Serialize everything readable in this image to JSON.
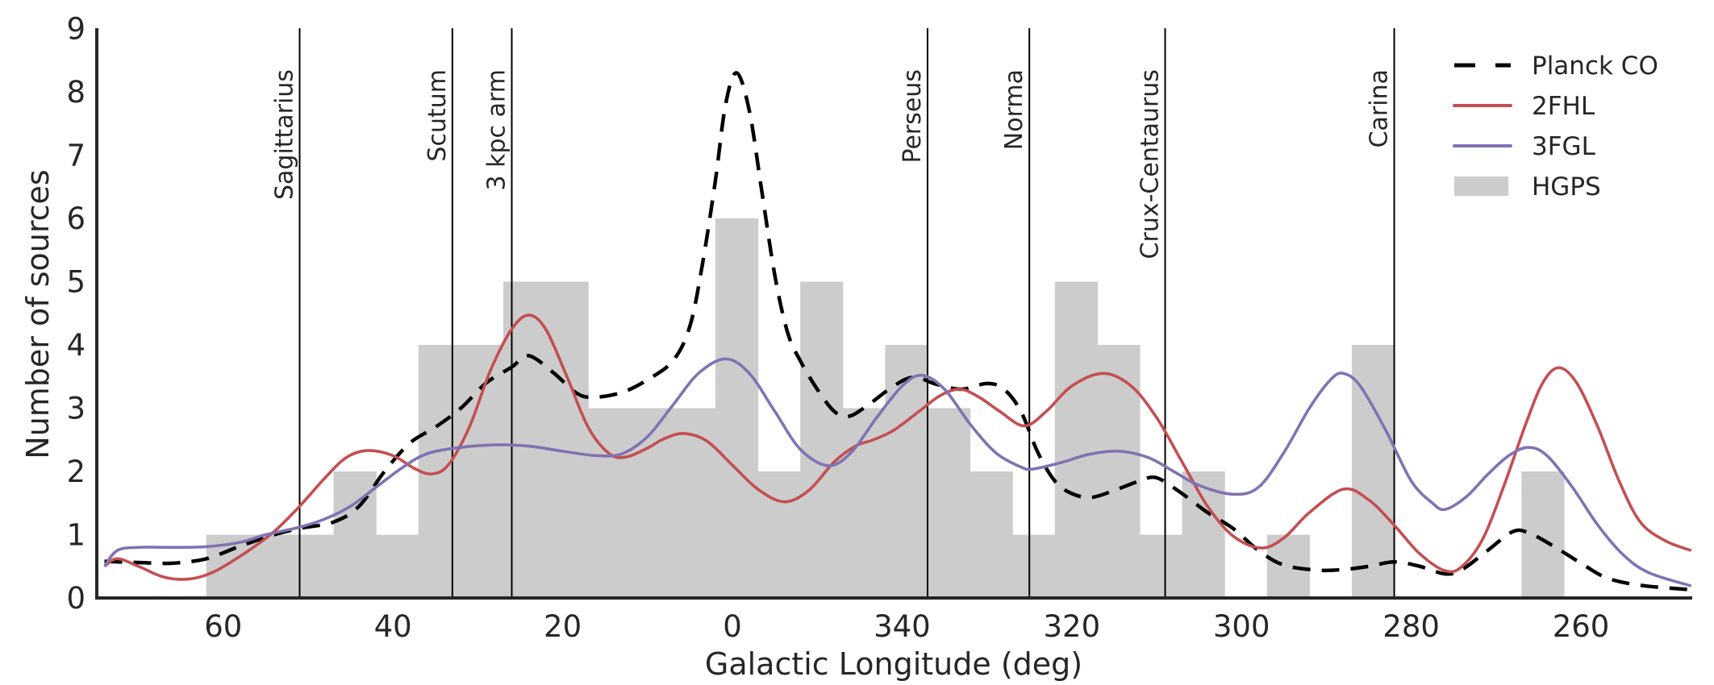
{
  "chart_data": {
    "type": "bar+line",
    "title": "",
    "xlabel": "Galactic Longitude (deg)",
    "ylabel": "Number of sources",
    "x_convention": "signed galactic longitude in degrees (negative = 360 + value), axis reversed",
    "xlim": [
      74,
      -113
    ],
    "ylim": [
      0,
      9
    ],
    "grid": false,
    "x_ticks": [
      {
        "value": 60,
        "label": "60"
      },
      {
        "value": 40,
        "label": "40"
      },
      {
        "value": 20,
        "label": "20"
      },
      {
        "value": 0,
        "label": "0"
      },
      {
        "value": -20,
        "label": "340"
      },
      {
        "value": -40,
        "label": "320"
      },
      {
        "value": -60,
        "label": "300"
      },
      {
        "value": -80,
        "label": "280"
      },
      {
        "value": -100,
        "label": "260"
      }
    ],
    "y_ticks": [
      {
        "value": 0,
        "label": "0"
      },
      {
        "value": 1,
        "label": "1"
      },
      {
        "value": 2,
        "label": "2"
      },
      {
        "value": 3,
        "label": "3"
      },
      {
        "value": 4,
        "label": "4"
      },
      {
        "value": 5,
        "label": "5"
      },
      {
        "value": 6,
        "label": "6"
      },
      {
        "value": 7,
        "label": "7"
      },
      {
        "value": 8,
        "label": "8"
      },
      {
        "value": 9,
        "label": "9"
      }
    ],
    "legend": {
      "placement": "top-right",
      "entries": [
        {
          "label": "Planck CO",
          "style": "dashed-line",
          "color": "#000000"
        },
        {
          "label": "2FHL",
          "style": "line",
          "color": "#c44e52"
        },
        {
          "label": "3FGL",
          "style": "line",
          "color": "#8172b2"
        },
        {
          "label": "HGPS",
          "style": "bar",
          "color": "#cccccc"
        }
      ]
    },
    "histogram": {
      "name": "HGPS",
      "color": "#cccccc",
      "bin_width": 5,
      "bin_start": 62,
      "counts": [
        1,
        1,
        1,
        2,
        1,
        4,
        4,
        5,
        5,
        3,
        3,
        3,
        6,
        2,
        5,
        3,
        4,
        3,
        2,
        1,
        5,
        4,
        1,
        2,
        0,
        1,
        0,
        4,
        0,
        0,
        0,
        2
      ]
    },
    "arms": [
      {
        "name": "Sagittarius",
        "longitude": 51
      },
      {
        "name": "Scutum",
        "longitude": 33
      },
      {
        "name": "3 kpc arm",
        "longitude": 26
      },
      {
        "name": "Perseus",
        "longitude": -23
      },
      {
        "name": "Norma",
        "longitude": -35
      },
      {
        "name": "Crux-Centaurus",
        "longitude": -51
      },
      {
        "name": "Carina",
        "longitude": -78
      }
    ],
    "series": [
      {
        "name": "Planck CO",
        "color": "#000000",
        "dashed": true,
        "points": [
          [
            74,
            0.58
          ],
          [
            70,
            0.56
          ],
          [
            66,
            0.55
          ],
          [
            62,
            0.62
          ],
          [
            58,
            0.82
          ],
          [
            54,
            1.0
          ],
          [
            51,
            1.1
          ],
          [
            47,
            1.2
          ],
          [
            44,
            1.45
          ],
          [
            41,
            2.0
          ],
          [
            38,
            2.45
          ],
          [
            35,
            2.7
          ],
          [
            32,
            3.0
          ],
          [
            29,
            3.4
          ],
          [
            26,
            3.65
          ],
          [
            24,
            3.83
          ],
          [
            21,
            3.55
          ],
          [
            18.5,
            3.25
          ],
          [
            16.5,
            3.17
          ],
          [
            13,
            3.25
          ],
          [
            10,
            3.45
          ],
          [
            7,
            3.75
          ],
          [
            5,
            4.3
          ],
          [
            3.5,
            5.3
          ],
          [
            2,
            6.6
          ],
          [
            0.8,
            7.8
          ],
          [
            -0.5,
            8.3
          ],
          [
            -2,
            7.7
          ],
          [
            -3.5,
            6.4
          ],
          [
            -5,
            5.1
          ],
          [
            -6.5,
            4.2
          ],
          [
            -8,
            3.75
          ],
          [
            -10,
            3.3
          ],
          [
            -12,
            2.95
          ],
          [
            -13.7,
            2.87
          ],
          [
            -16,
            3.05
          ],
          [
            -19,
            3.35
          ],
          [
            -21.4,
            3.49
          ],
          [
            -24,
            3.38
          ],
          [
            -27,
            3.3
          ],
          [
            -30,
            3.39
          ],
          [
            -32,
            3.3
          ],
          [
            -34,
            2.95
          ],
          [
            -36,
            2.3
          ],
          [
            -38,
            1.85
          ],
          [
            -40,
            1.65
          ],
          [
            -42.3,
            1.59
          ],
          [
            -45,
            1.7
          ],
          [
            -48,
            1.85
          ],
          [
            -50,
            1.9
          ],
          [
            -53,
            1.65
          ],
          [
            -56,
            1.35
          ],
          [
            -59,
            1.1
          ],
          [
            -62,
            0.75
          ],
          [
            -65,
            0.52
          ],
          [
            -69,
            0.44
          ],
          [
            -72,
            0.45
          ],
          [
            -75,
            0.5
          ],
          [
            -78,
            0.57
          ],
          [
            -81,
            0.5
          ],
          [
            -84,
            0.38
          ],
          [
            -86,
            0.45
          ],
          [
            -89,
            0.75
          ],
          [
            -92,
            1.05
          ],
          [
            -94,
            1.02
          ],
          [
            -97,
            0.8
          ],
          [
            -100,
            0.55
          ],
          [
            -103,
            0.32
          ],
          [
            -107,
            0.2
          ],
          [
            -113,
            0.13
          ]
        ]
      },
      {
        "name": "2FHL",
        "color": "#c44e52",
        "dashed": false,
        "points": [
          [
            74,
            0.5
          ],
          [
            72.5,
            0.62
          ],
          [
            70,
            0.5
          ],
          [
            67,
            0.33
          ],
          [
            64,
            0.3
          ],
          [
            61,
            0.42
          ],
          [
            57,
            0.75
          ],
          [
            54,
            1.05
          ],
          [
            51,
            1.45
          ],
          [
            48,
            1.9
          ],
          [
            45.5,
            2.22
          ],
          [
            43,
            2.33
          ],
          [
            40,
            2.25
          ],
          [
            37.5,
            2.05
          ],
          [
            35.5,
            1.96
          ],
          [
            33.5,
            2.1
          ],
          [
            31,
            2.7
          ],
          [
            28.5,
            3.6
          ],
          [
            26,
            4.25
          ],
          [
            24,
            4.47
          ],
          [
            22,
            4.25
          ],
          [
            19.5,
            3.5
          ],
          [
            17,
            2.7
          ],
          [
            14.5,
            2.28
          ],
          [
            12.5,
            2.23
          ],
          [
            10,
            2.37
          ],
          [
            8,
            2.52
          ],
          [
            5.7,
            2.6
          ],
          [
            3,
            2.48
          ],
          [
            0,
            2.1
          ],
          [
            -3,
            1.72
          ],
          [
            -6.1,
            1.52
          ],
          [
            -9,
            1.7
          ],
          [
            -12,
            2.15
          ],
          [
            -14.5,
            2.4
          ],
          [
            -16.6,
            2.5
          ],
          [
            -19,
            2.65
          ],
          [
            -22,
            2.95
          ],
          [
            -24.5,
            3.2
          ],
          [
            -26.8,
            3.3
          ],
          [
            -29,
            3.18
          ],
          [
            -31.5,
            2.95
          ],
          [
            -34.4,
            2.72
          ],
          [
            -37,
            2.95
          ],
          [
            -40,
            3.35
          ],
          [
            -43.7,
            3.55
          ],
          [
            -47,
            3.35
          ],
          [
            -50,
            2.85
          ],
          [
            -53,
            2.15
          ],
          [
            -56,
            1.45
          ],
          [
            -59,
            0.98
          ],
          [
            -62.3,
            0.79
          ],
          [
            -65,
            0.95
          ],
          [
            -68,
            1.35
          ],
          [
            -72,
            1.72
          ],
          [
            -75,
            1.55
          ],
          [
            -78,
            1.15
          ],
          [
            -81,
            0.7
          ],
          [
            -84,
            0.43
          ],
          [
            -86,
            0.5
          ],
          [
            -88.5,
            0.95
          ],
          [
            -91,
            1.8
          ],
          [
            -93.5,
            2.75
          ],
          [
            -95.5,
            3.4
          ],
          [
            -97.4,
            3.64
          ],
          [
            -99.5,
            3.4
          ],
          [
            -102,
            2.7
          ],
          [
            -104.5,
            1.85
          ],
          [
            -107,
            1.2
          ],
          [
            -110,
            0.9
          ],
          [
            -113,
            0.75
          ]
        ]
      },
      {
        "name": "3FGL",
        "color": "#8172b2",
        "dashed": false,
        "points": [
          [
            74,
            0.5
          ],
          [
            72.5,
            0.75
          ],
          [
            70,
            0.8
          ],
          [
            66,
            0.8
          ],
          [
            62,
            0.81
          ],
          [
            58,
            0.88
          ],
          [
            55,
            1.0
          ],
          [
            51,
            1.12
          ],
          [
            48,
            1.25
          ],
          [
            45,
            1.45
          ],
          [
            42,
            1.75
          ],
          [
            39,
            2.05
          ],
          [
            36,
            2.28
          ],
          [
            32,
            2.38
          ],
          [
            28,
            2.42
          ],
          [
            24,
            2.4
          ],
          [
            20,
            2.32
          ],
          [
            16,
            2.25
          ],
          [
            13,
            2.28
          ],
          [
            10,
            2.55
          ],
          [
            7,
            3.05
          ],
          [
            4,
            3.55
          ],
          [
            0.8,
            3.78
          ],
          [
            -2,
            3.55
          ],
          [
            -5,
            2.95
          ],
          [
            -8,
            2.35
          ],
          [
            -11.3,
            2.09
          ],
          [
            -14,
            2.3
          ],
          [
            -17,
            2.85
          ],
          [
            -20,
            3.35
          ],
          [
            -22.3,
            3.52
          ],
          [
            -25,
            3.3
          ],
          [
            -28,
            2.75
          ],
          [
            -31,
            2.3
          ],
          [
            -34,
            2.07
          ],
          [
            -35.5,
            2.04
          ],
          [
            -39,
            2.15
          ],
          [
            -42,
            2.27
          ],
          [
            -45.5,
            2.32
          ],
          [
            -49,
            2.22
          ],
          [
            -52,
            2.0
          ],
          [
            -55,
            1.78
          ],
          [
            -59,
            1.64
          ],
          [
            -62,
            1.75
          ],
          [
            -65,
            2.3
          ],
          [
            -68,
            3.0
          ],
          [
            -70.5,
            3.45
          ],
          [
            -72,
            3.55
          ],
          [
            -74,
            3.35
          ],
          [
            -77,
            2.65
          ],
          [
            -80,
            1.85
          ],
          [
            -82.5,
            1.5
          ],
          [
            -84,
            1.4
          ],
          [
            -86.5,
            1.6
          ],
          [
            -89,
            1.95
          ],
          [
            -91.5,
            2.25
          ],
          [
            -93.8,
            2.38
          ],
          [
            -96,
            2.25
          ],
          [
            -99,
            1.75
          ],
          [
            -102,
            1.15
          ],
          [
            -105,
            0.68
          ],
          [
            -108,
            0.4
          ],
          [
            -113,
            0.19
          ]
        ]
      }
    ]
  }
}
